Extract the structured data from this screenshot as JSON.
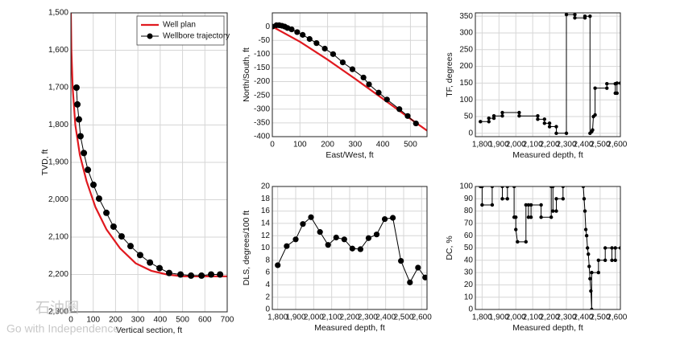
{
  "chart_data": [
    {
      "type": "line",
      "xlabel": "Vertical section, ft",
      "ylabel": "TVD, ft",
      "y_inverted": true,
      "grid": true,
      "legend": "upper right",
      "xlim": [
        0,
        700
      ],
      "ylim": [
        1500,
        2300
      ],
      "xticks": [
        0,
        100,
        200,
        300,
        400,
        500,
        600,
        700
      ],
      "yticks": [
        {
          "value": 1500,
          "label": "1,500"
        },
        {
          "value": 1600,
          "label": "1,600"
        },
        {
          "value": 1700,
          "label": "1,700"
        },
        {
          "value": 1800,
          "label": "1,800"
        },
        {
          "value": 1900,
          "label": "1,900"
        },
        {
          "value": 2000,
          "label": "2,000"
        },
        {
          "value": 2100,
          "label": "2,100"
        },
        {
          "value": 2200,
          "label": "2,200"
        },
        {
          "value": 2300,
          "label": "2,300"
        }
      ],
      "series": [
        {
          "name": "Well plan",
          "color": "#e0191f",
          "marker": false,
          "x": [
            0,
            2,
            8,
            20,
            40,
            70,
            110,
            160,
            220,
            290,
            360,
            430,
            500,
            700
          ],
          "values": [
            1500,
            1600,
            1700,
            1800,
            1880,
            1950,
            2020,
            2080,
            2130,
            2170,
            2190,
            2200,
            2205,
            2205
          ]
        },
        {
          "name": "Wellbore trajectory",
          "color": "#000000",
          "marker": true,
          "x": [
            25,
            29,
            36,
            43,
            58,
            76,
            101,
            126,
            159,
            191,
            227,
            267,
            310,
            354,
            397,
            440,
            491,
            538,
            585,
            628,
            668
          ],
          "values": [
            1700,
            1745,
            1785,
            1830,
            1875,
            1920,
            1960,
            1997,
            2035,
            2072,
            2098,
            2124,
            2148,
            2168,
            2183,
            2196,
            2200,
            2203,
            2203,
            2200,
            2200
          ]
        }
      ]
    },
    {
      "type": "line",
      "xlabel": "East/West, ft",
      "ylabel": "North/South, ft",
      "grid": true,
      "xlim": [
        0,
        560
      ],
      "ylim": [
        -400,
        50
      ],
      "xticks": [
        0,
        100,
        200,
        300,
        400,
        500
      ],
      "yticks": [
        0,
        -50,
        -100,
        -150,
        -200,
        -250,
        -300,
        -350,
        -400
      ],
      "series": [
        {
          "color": "#e0191f",
          "marker": false,
          "x": [
            0,
            100,
            200,
            300,
            400,
            500,
            560
          ],
          "values": [
            0,
            -55,
            -120,
            -190,
            -262,
            -335,
            -378
          ]
        },
        {
          "color": "#000000",
          "marker": true,
          "x": [
            0,
            15,
            25,
            35,
            45,
            55,
            70,
            90,
            110,
            135,
            160,
            190,
            220,
            255,
            290,
            330,
            350,
            385,
            415,
            460,
            490,
            520
          ],
          "values": [
            0,
            5,
            5,
            3,
            0,
            -5,
            -10,
            -20,
            -30,
            -45,
            -60,
            -80,
            -100,
            -130,
            -155,
            -185,
            -210,
            -240,
            -265,
            -300,
            -325,
            -352
          ]
        }
      ]
    },
    {
      "type": "line",
      "xlabel": "Measured depth, ft",
      "ylabel": "TF, degrees",
      "grid": true,
      "xlim": [
        1760,
        2620
      ],
      "ylim": [
        -10,
        360
      ],
      "xticks": [
        {
          "value": 1800,
          "label": "1,800"
        },
        {
          "value": 1900,
          "label": "1,900"
        },
        {
          "value": 2000,
          "label": "2,000"
        },
        {
          "value": 2100,
          "label": "2,100"
        },
        {
          "value": 2200,
          "label": "2,200"
        },
        {
          "value": 2300,
          "label": "2,300"
        },
        {
          "value": 2400,
          "label": "2,400"
        },
        {
          "value": 2500,
          "label": "2,500"
        },
        {
          "value": 2600,
          "label": "2,600"
        }
      ],
      "yticks": [
        0,
        50,
        100,
        150,
        200,
        250,
        300,
        350
      ],
      "series": [
        {
          "color": "#000000",
          "marker": true,
          "x": [
            1790,
            1840,
            1840,
            1870,
            1870,
            1920,
            1920,
            2020,
            2020,
            2130,
            2130,
            2170,
            2170,
            2200,
            2200,
            2240,
            2240,
            2300,
            2300,
            2350,
            2350,
            2410,
            2410,
            2440,
            2440,
            2450,
            2455,
            2460,
            2470,
            2470,
            2540,
            2540,
            2590,
            2590,
            2600,
            2600,
            2620
          ],
          "values": [
            35,
            35,
            45,
            45,
            52,
            52,
            62,
            62,
            52,
            52,
            42,
            42,
            30,
            30,
            20,
            20,
            0,
            0,
            355,
            355,
            345,
            345,
            350,
            350,
            0,
            5,
            10,
            50,
            55,
            135,
            135,
            148,
            148,
            120,
            120,
            150,
            150
          ]
        }
      ]
    },
    {
      "type": "line",
      "xlabel": "Measured depth, ft",
      "ylabel": "DLS, degrees/100 ft",
      "grid": true,
      "xlim": [
        1770,
        2630
      ],
      "ylim": [
        0,
        20
      ],
      "xticks": [
        {
          "value": 1800,
          "label": "1,800"
        },
        {
          "value": 1900,
          "label": "1,900"
        },
        {
          "value": 2000,
          "label": "2,000"
        },
        {
          "value": 2100,
          "label": "2,100"
        },
        {
          "value": 2200,
          "label": "2,200"
        },
        {
          "value": 2300,
          "label": "2,300"
        },
        {
          "value": 2400,
          "label": "2,400"
        },
        {
          "value": 2500,
          "label": "2,500"
        },
        {
          "value": 2600,
          "label": "2,600"
        }
      ],
      "yticks": [
        0,
        2,
        4,
        6,
        8,
        10,
        12,
        14,
        16,
        18,
        20
      ],
      "series": [
        {
          "color": "#000000",
          "marker": true,
          "x": [
            1800,
            1850,
            1900,
            1940,
            1985,
            2035,
            2080,
            2125,
            2170,
            2215,
            2260,
            2305,
            2350,
            2395,
            2440,
            2485,
            2535,
            2580,
            2620
          ],
          "values": [
            7.2,
            10.3,
            11.4,
            13.9,
            15,
            12.6,
            10.5,
            11.7,
            11.4,
            9.9,
            9.8,
            11.6,
            12.2,
            14.7,
            14.9,
            7.9,
            4.4,
            6.8,
            5.2
          ]
        }
      ]
    },
    {
      "type": "line",
      "xlabel": "Measured depth, ft",
      "ylabel": "DC, %",
      "grid": true,
      "xlim": [
        1760,
        2620
      ],
      "ylim": [
        0,
        100
      ],
      "xticks": [
        {
          "value": 1800,
          "label": "1,800"
        },
        {
          "value": 1900,
          "label": "1,900"
        },
        {
          "value": 2000,
          "label": "2,000"
        },
        {
          "value": 2100,
          "label": "2,100"
        },
        {
          "value": 2200,
          "label": "2,200"
        },
        {
          "value": 2300,
          "label": "2,300"
        },
        {
          "value": 2400,
          "label": "2,400"
        },
        {
          "value": 2500,
          "label": "2,500"
        },
        {
          "value": 2600,
          "label": "2,600"
        }
      ],
      "yticks": [
        0,
        10,
        20,
        30,
        40,
        50,
        60,
        70,
        80,
        90,
        100
      ],
      "series": [
        {
          "color": "#000000",
          "marker": true,
          "x": [
            1790,
            1800,
            1800,
            1860,
            1860,
            1920,
            1920,
            1950,
            1950,
            1990,
            1990,
            2000,
            2000,
            2010,
            2060,
            2060,
            2075,
            2075,
            2090,
            2090,
            2150,
            2150,
            2210,
            2210,
            2220,
            2220,
            2240,
            2240,
            2280,
            2280,
            2400,
            2405,
            2410,
            2415,
            2420,
            2425,
            2430,
            2435,
            2440,
            2445,
            2450,
            2450,
            2490,
            2490,
            2530,
            2530,
            2570,
            2570,
            2590,
            2590,
            2620
          ],
          "values": [
            100,
            100,
            85,
            85,
            100,
            100,
            90,
            90,
            100,
            100,
            75,
            75,
            65,
            55,
            55,
            85,
            85,
            75,
            75,
            85,
            85,
            75,
            75,
            100,
            100,
            80,
            80,
            90,
            90,
            100,
            100,
            90,
            80,
            65,
            60,
            50,
            45,
            35,
            25,
            15,
            0,
            30,
            30,
            40,
            40,
            50,
            50,
            40,
            40,
            50,
            50
          ]
        }
      ]
    }
  ],
  "watermark": {
    "logo": "石油圈",
    "slogan": "Go with Independence"
  }
}
